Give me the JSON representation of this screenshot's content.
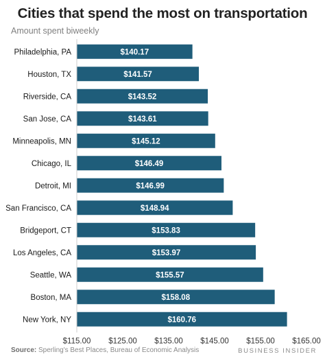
{
  "header": {
    "title": "Cities that spend the most on transportation",
    "subtitle": "Amount spent biweekly"
  },
  "footer": {
    "source_label": "Source:",
    "source_text": " Sperling's Best Places, Bureau of Economic Analysis",
    "brand": "BUSINESS INSIDER"
  },
  "colors": {
    "bar": "#1f5d7a",
    "axis": "#cccccc"
  },
  "chart_data": {
    "type": "bar",
    "orientation": "horizontal",
    "title": "Cities that spend the most on transportation",
    "subtitle": "Amount spent biweekly",
    "categories": [
      "Philadelphia, PA",
      "Houston, TX",
      "Riverside, CA",
      "San Jose, CA",
      "Minneapolis, MN",
      "Chicago, IL",
      "Detroit, MI",
      "San Francisco, CA",
      "Bridgeport, CT",
      "Los Angeles, CA",
      "Seattle, WA",
      "Boston, MA",
      "New York, NY"
    ],
    "values": [
      140.17,
      141.57,
      143.52,
      143.61,
      145.12,
      146.49,
      146.99,
      148.94,
      153.83,
      153.97,
      155.57,
      158.08,
      160.76
    ],
    "value_labels": [
      "$140.17",
      "$141.57",
      "$143.52",
      "$143.61",
      "$145.12",
      "$146.49",
      "$146.99",
      "$148.94",
      "$153.83",
      "$153.97",
      "$155.57",
      "$158.08",
      "$160.76"
    ],
    "xlim": [
      115,
      165
    ],
    "xticks": [
      115,
      125,
      135,
      145,
      155,
      165
    ],
    "xtick_labels": [
      "$115.00",
      "$125.00",
      "$135.00",
      "$145.00",
      "$155.00",
      "$165.00"
    ],
    "grid": false
  }
}
